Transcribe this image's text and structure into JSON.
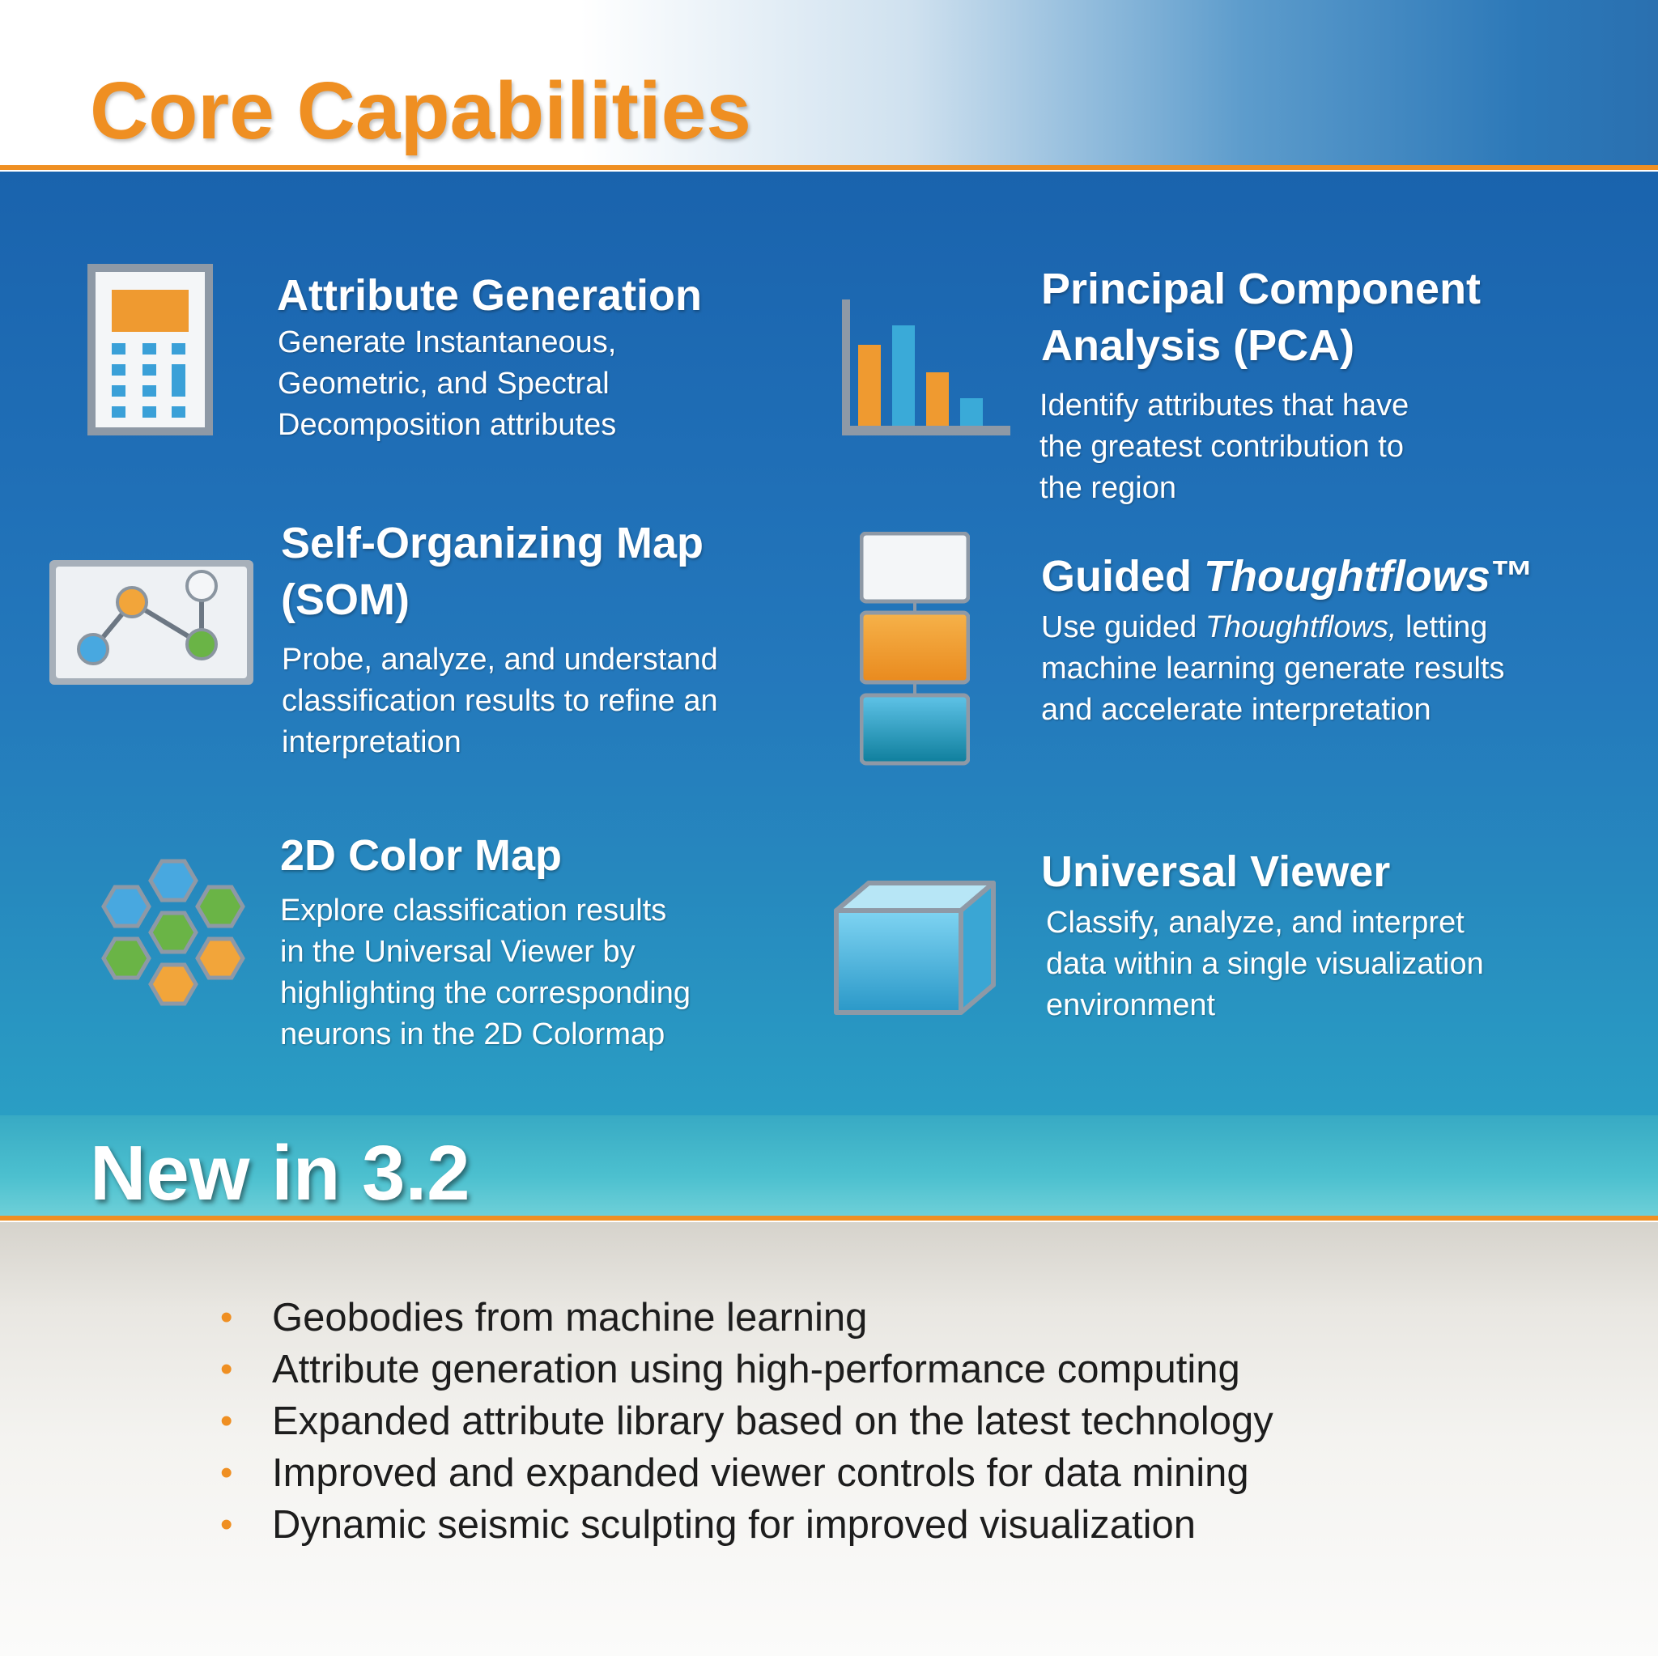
{
  "header": {
    "title": "Core Capabilities"
  },
  "capabilities": [
    {
      "title": "Attribute Generation",
      "body": [
        "Generate Instantaneous,",
        "Geometric, and Spectral",
        "Decomposition attributes"
      ],
      "icon": "calculator-icon"
    },
    {
      "title_line1": "Principal Component",
      "title_line2": "Analysis (PCA)",
      "body": [
        "Identify attributes that have",
        "the greatest contribution to",
        "the region"
      ],
      "icon": "bar-chart-icon"
    },
    {
      "title_line1": "Self-Organizing Map",
      "title_line2": "(SOM)",
      "body": [
        "Probe, analyze, and understand",
        "classification results to refine an",
        "interpretation"
      ],
      "icon": "node-graph-icon"
    },
    {
      "title": "Guided ",
      "title_italic": "Thoughtflows",
      "title_tm": "™",
      "body_pre": "Use guided ",
      "body_italic": "Thoughtflows,",
      "body_post": " letting",
      "body": [
        "machine learning generate results",
        "and accelerate interpretation"
      ],
      "icon": "workflow-stack-icon"
    },
    {
      "title": "2D Color Map",
      "body": [
        "Explore classification results",
        "in the Universal Viewer by",
        "highlighting the corresponding",
        "neurons in the 2D Colormap"
      ],
      "icon": "hexagon-map-icon"
    },
    {
      "title": "Universal Viewer",
      "body": [
        "Classify, analyze, and interpret",
        "data within a single visualization",
        "environment"
      ],
      "icon": "cube-icon"
    }
  ],
  "new_section": {
    "title": "New in 3.2",
    "items": [
      "Geobodies from machine learning",
      "Attribute generation using high-performance computing",
      "Expanded attribute library based on the latest technology",
      "Improved and expanded viewer controls for data mining",
      "Dynamic seismic sculpting for improved visualization"
    ],
    "bullet": "•"
  },
  "colors": {
    "accent": "#ef8f22",
    "ocean": "#1f6eb6",
    "text_light": "#ffffff"
  }
}
